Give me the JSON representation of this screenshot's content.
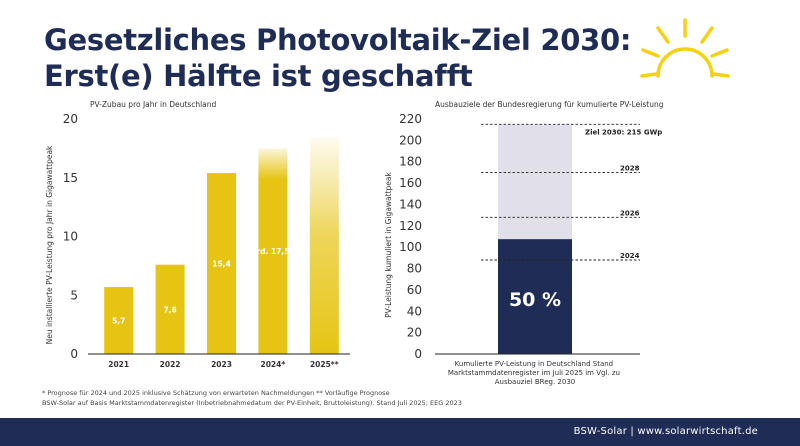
{
  "title_line1": "Gesetzliches Photovoltaik-Ziel 2030:",
  "title_line2": "Erst(e) Hälfte ist geschafft",
  "icons": {
    "sun": "sun-icon"
  },
  "colors": {
    "navy": "#1f2d56",
    "yellow": "#e6c414",
    "light_bar": "#e1e0e8"
  },
  "chart_data": [
    {
      "type": "bar",
      "title": "PV-Zubau pro Jahr in Deutschland",
      "xlabel": "",
      "ylabel": "Neu installierte PV-Leistung pro Jahr in Gigawattpeak",
      "ylim": [
        0,
        20
      ],
      "yticks": [
        "0",
        "5",
        "10",
        "15",
        "20"
      ],
      "categories": [
        "2021",
        "2022",
        "2023",
        "2024*",
        "2025**"
      ],
      "values": [
        5.7,
        7.6,
        15.4,
        17.5,
        18.5
      ],
      "data_labels": [
        "5,7",
        "7,6",
        "15,4",
        "rd. 17,5",
        ""
      ],
      "grid": false
    },
    {
      "type": "bar",
      "title": "Ausbauziele der Bundesregierung für kumulierte PV-Leistung",
      "xlabel": "Kumulierte PV-Leistung in Deutschland Stand Marktstammdatenregister im Juli 2025 im Vgl. zu Ausbauziel BReg. 2030",
      "ylabel": "PV-Leistung kumuliert in Gigawattpeak",
      "ylim": [
        0,
        220
      ],
      "yticks": [
        "0",
        "20",
        "40",
        "60",
        "80",
        "100",
        "120",
        "140",
        "160",
        "180",
        "200",
        "220"
      ],
      "target_value": 215,
      "achieved_value": 107.5,
      "achieved_label": "50 %",
      "targets": [
        {
          "label": "Ziel 2030: 215 GWp",
          "value": 215
        },
        {
          "label": "2028",
          "value": 170
        },
        {
          "label": "2026",
          "value": 128
        },
        {
          "label": "2024",
          "value": 88
        }
      ],
      "grid": false
    }
  ],
  "footnote_line1": "* Prognose für 2024 und 2025 inklusive Schätzung von erwarteten Nachmeldungen  ** Vorläufige Prognose",
  "footnote_line2": "BSW-Solar auf Basis Marktstammdatenregister (Inbetriebnahmedatum der PV-Einheit, Bruttoleistung). Stand Juli 2025; EEG 2023",
  "footer_text": "BSW-Solar | www.solarwirtschaft.de"
}
